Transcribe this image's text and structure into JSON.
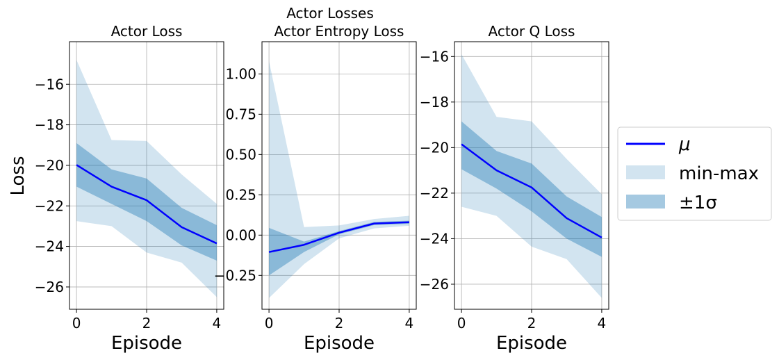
{
  "figure": {
    "suptitle": "Actor Losses",
    "ylabel": "Loss",
    "xlabel": "Episode"
  },
  "legend": {
    "placement": "right",
    "entries": [
      {
        "key": "mean",
        "label": "μ",
        "color": "#0000ff"
      },
      {
        "key": "minmax",
        "label": "min-max",
        "color": "#1f77b4"
      },
      {
        "key": "std",
        "label": "±1σ",
        "color": "#1f77b4"
      }
    ]
  },
  "chart_data": [
    {
      "type": "line",
      "title": "Actor Loss",
      "x": [
        0,
        1,
        2,
        3,
        4
      ],
      "mean": [
        -19.98,
        -21.05,
        -21.72,
        -23.05,
        -23.85
      ],
      "std_band": {
        "lower": [
          -21.05,
          -21.9,
          -22.75,
          -23.95,
          -24.7
        ],
        "upper": [
          -18.9,
          -20.2,
          -20.65,
          -22.1,
          -22.95
        ]
      },
      "minmax_band": {
        "lower": [
          -22.75,
          -23.0,
          -24.3,
          -24.8,
          -26.5
        ],
        "upper": [
          -14.8,
          -18.75,
          -18.8,
          -20.45,
          -21.9
        ]
      },
      "xticks": [
        0,
        2,
        4
      ],
      "yticks": [
        -16,
        -18,
        -20,
        -22,
        -24,
        -26
      ],
      "ytick_labels": [
        "−16",
        "−18",
        "−20",
        "−22",
        "−24",
        "−26"
      ],
      "xlim": [
        -0.2,
        4.2
      ],
      "ylim": [
        -27.1,
        -13.9
      ],
      "grid": true,
      "ylabel": "Loss",
      "xlabel": "Episode"
    },
    {
      "type": "line",
      "title": "Actor Entropy Loss",
      "x": [
        0,
        1,
        2,
        3,
        4
      ],
      "mean": [
        -0.105,
        -0.06,
        0.015,
        0.072,
        0.08
      ],
      "std_band": {
        "lower": [
          -0.25,
          -0.105,
          0.005,
          0.062,
          0.07
        ],
        "upper": [
          0.045,
          -0.04,
          0.025,
          0.082,
          0.09
        ]
      },
      "minmax_band": {
        "lower": [
          -0.39,
          -0.18,
          -0.02,
          0.042,
          0.058
        ],
        "upper": [
          1.08,
          0.05,
          0.06,
          0.1,
          0.12
        ]
      },
      "xticks": [
        0,
        2,
        4
      ],
      "yticks": [
        1.0,
        0.75,
        0.5,
        0.25,
        0.0,
        -0.25
      ],
      "ytick_labels": [
        "1.00",
        "0.75",
        "0.50",
        "0.25",
        "0.00",
        "−0.25"
      ],
      "xlim": [
        -0.2,
        4.2
      ],
      "ylim": [
        -0.46,
        1.2
      ],
      "grid": true,
      "xlabel": "Episode"
    },
    {
      "type": "line",
      "title": "Actor Q Loss",
      "x": [
        0,
        1,
        2,
        3,
        4
      ],
      "mean": [
        -19.85,
        -21.0,
        -21.75,
        -23.1,
        -23.95
      ],
      "std_band": {
        "lower": [
          -20.95,
          -21.8,
          -22.8,
          -24.0,
          -24.8
        ],
        "upper": [
          -18.85,
          -20.15,
          -20.7,
          -22.15,
          -23.05
        ]
      },
      "minmax_band": {
        "lower": [
          -22.6,
          -23.0,
          -24.35,
          -24.9,
          -26.6
        ],
        "upper": [
          -15.9,
          -18.65,
          -18.85,
          -20.5,
          -22.05
        ]
      },
      "xticks": [
        0,
        2,
        4
      ],
      "yticks": [
        -16,
        -18,
        -20,
        -22,
        -24,
        -26
      ],
      "ytick_labels": [
        "−16",
        "−18",
        "−20",
        "−22",
        "−24",
        "−26"
      ],
      "xlim": [
        -0.2,
        4.2
      ],
      "ylim": [
        -27.1,
        -15.35
      ],
      "grid": true,
      "xlabel": "Episode"
    }
  ]
}
